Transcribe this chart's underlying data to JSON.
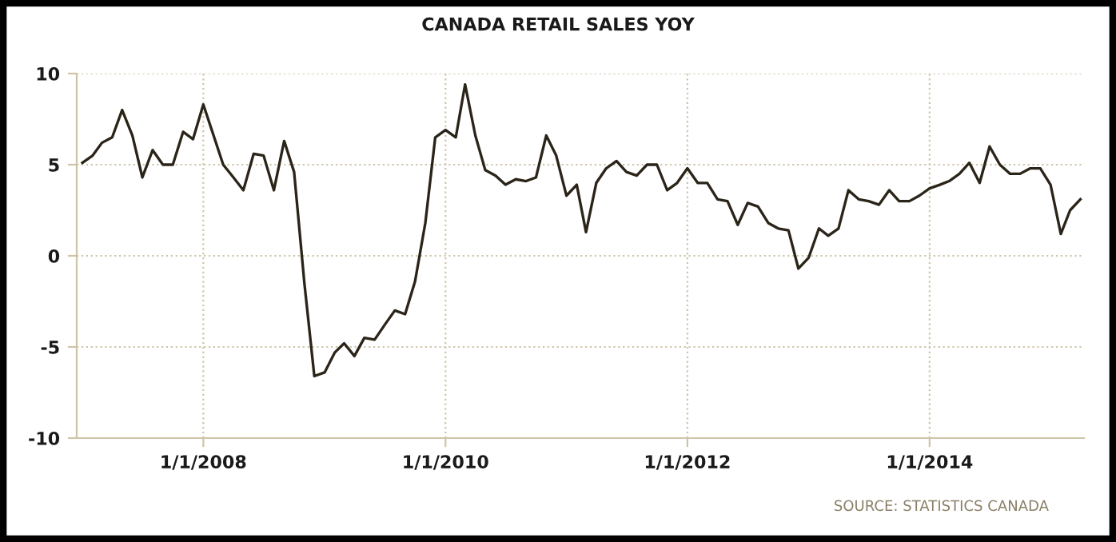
{
  "chart_data": {
    "type": "line",
    "title": "CANADA RETAIL SALES YOY",
    "x": [
      "2007-01",
      "2007-02",
      "2007-03",
      "2007-04",
      "2007-05",
      "2007-06",
      "2007-07",
      "2007-08",
      "2007-09",
      "2007-10",
      "2007-11",
      "2007-12",
      "2008-01",
      "2008-02",
      "2008-03",
      "2008-04",
      "2008-05",
      "2008-06",
      "2008-07",
      "2008-08",
      "2008-09",
      "2008-10",
      "2008-11",
      "2008-12",
      "2009-01",
      "2009-02",
      "2009-03",
      "2009-04",
      "2009-05",
      "2009-06",
      "2009-07",
      "2009-08",
      "2009-09",
      "2009-10",
      "2009-11",
      "2009-12",
      "2010-01",
      "2010-02",
      "2010-03",
      "2010-04",
      "2010-05",
      "2010-06",
      "2010-07",
      "2010-08",
      "2010-09",
      "2010-10",
      "2010-11",
      "2010-12",
      "2011-01",
      "2011-02",
      "2011-03",
      "2011-04",
      "2011-05",
      "2011-06",
      "2011-07",
      "2011-08",
      "2011-09",
      "2011-10",
      "2011-11",
      "2011-12",
      "2012-01",
      "2012-02",
      "2012-03",
      "2012-04",
      "2012-05",
      "2012-06",
      "2012-07",
      "2012-08",
      "2012-09",
      "2012-10",
      "2012-11",
      "2012-12",
      "2013-01",
      "2013-02",
      "2013-03",
      "2013-04",
      "2013-05",
      "2013-06",
      "2013-07",
      "2013-08",
      "2013-09",
      "2013-10",
      "2013-11",
      "2013-12",
      "2014-01",
      "2014-02",
      "2014-03",
      "2014-04",
      "2014-05",
      "2014-06",
      "2014-07",
      "2014-08",
      "2014-09",
      "2014-10",
      "2014-11",
      "2014-12",
      "2015-01",
      "2015-02",
      "2015-03",
      "2015-04"
    ],
    "series": [
      {
        "color": "#2b2418",
        "values": [
          5.1,
          5.5,
          6.2,
          6.5,
          8.0,
          6.6,
          4.3,
          5.8,
          5.0,
          5.0,
          6.8,
          6.4,
          8.3,
          6.6,
          5.0,
          4.3,
          3.6,
          5.6,
          5.5,
          3.6,
          6.3,
          4.6,
          -1.5,
          -6.6,
          -6.4,
          -5.3,
          -4.8,
          -5.5,
          -4.5,
          -4.6,
          -3.8,
          -3.0,
          -3.2,
          -1.4,
          1.8,
          6.5,
          6.9,
          6.5,
          9.4,
          6.6,
          4.7,
          4.4,
          3.9,
          4.2,
          4.1,
          4.3,
          6.6,
          5.5,
          3.3,
          3.9,
          1.3,
          4.0,
          4.8,
          5.2,
          4.6,
          4.4,
          5.0,
          5.0,
          3.6,
          4.0,
          4.8,
          4.0,
          4.0,
          3.1,
          3.0,
          1.7,
          2.9,
          2.7,
          1.8,
          1.5,
          1.4,
          -0.7,
          -0.1,
          1.5,
          1.1,
          1.5,
          3.6,
          3.1,
          3.0,
          2.8,
          3.6,
          3.0,
          3.0,
          3.3,
          3.7,
          3.9,
          4.1,
          4.5,
          5.1,
          4.0,
          6.0,
          5.0,
          4.5,
          4.5,
          4.8,
          4.8,
          3.9,
          1.2,
          2.5,
          3.1
        ]
      }
    ],
    "xlim": [
      "2006-12-15",
      "2015-04-12"
    ],
    "xticks": [
      {
        "value": "2008-01-01",
        "label": "1/1/2008"
      },
      {
        "value": "2010-01-01",
        "label": "1/1/2010"
      },
      {
        "value": "2012-01-01",
        "label": "1/1/2012"
      },
      {
        "value": "2014-01-01",
        "label": "1/1/2014"
      }
    ],
    "ylim": [
      -10,
      10
    ],
    "yticks": [
      -10,
      -5,
      0,
      5,
      10
    ],
    "grid": true,
    "legend": false,
    "annotations": [
      "SOURCE: STATISTICS CANADA"
    ]
  }
}
